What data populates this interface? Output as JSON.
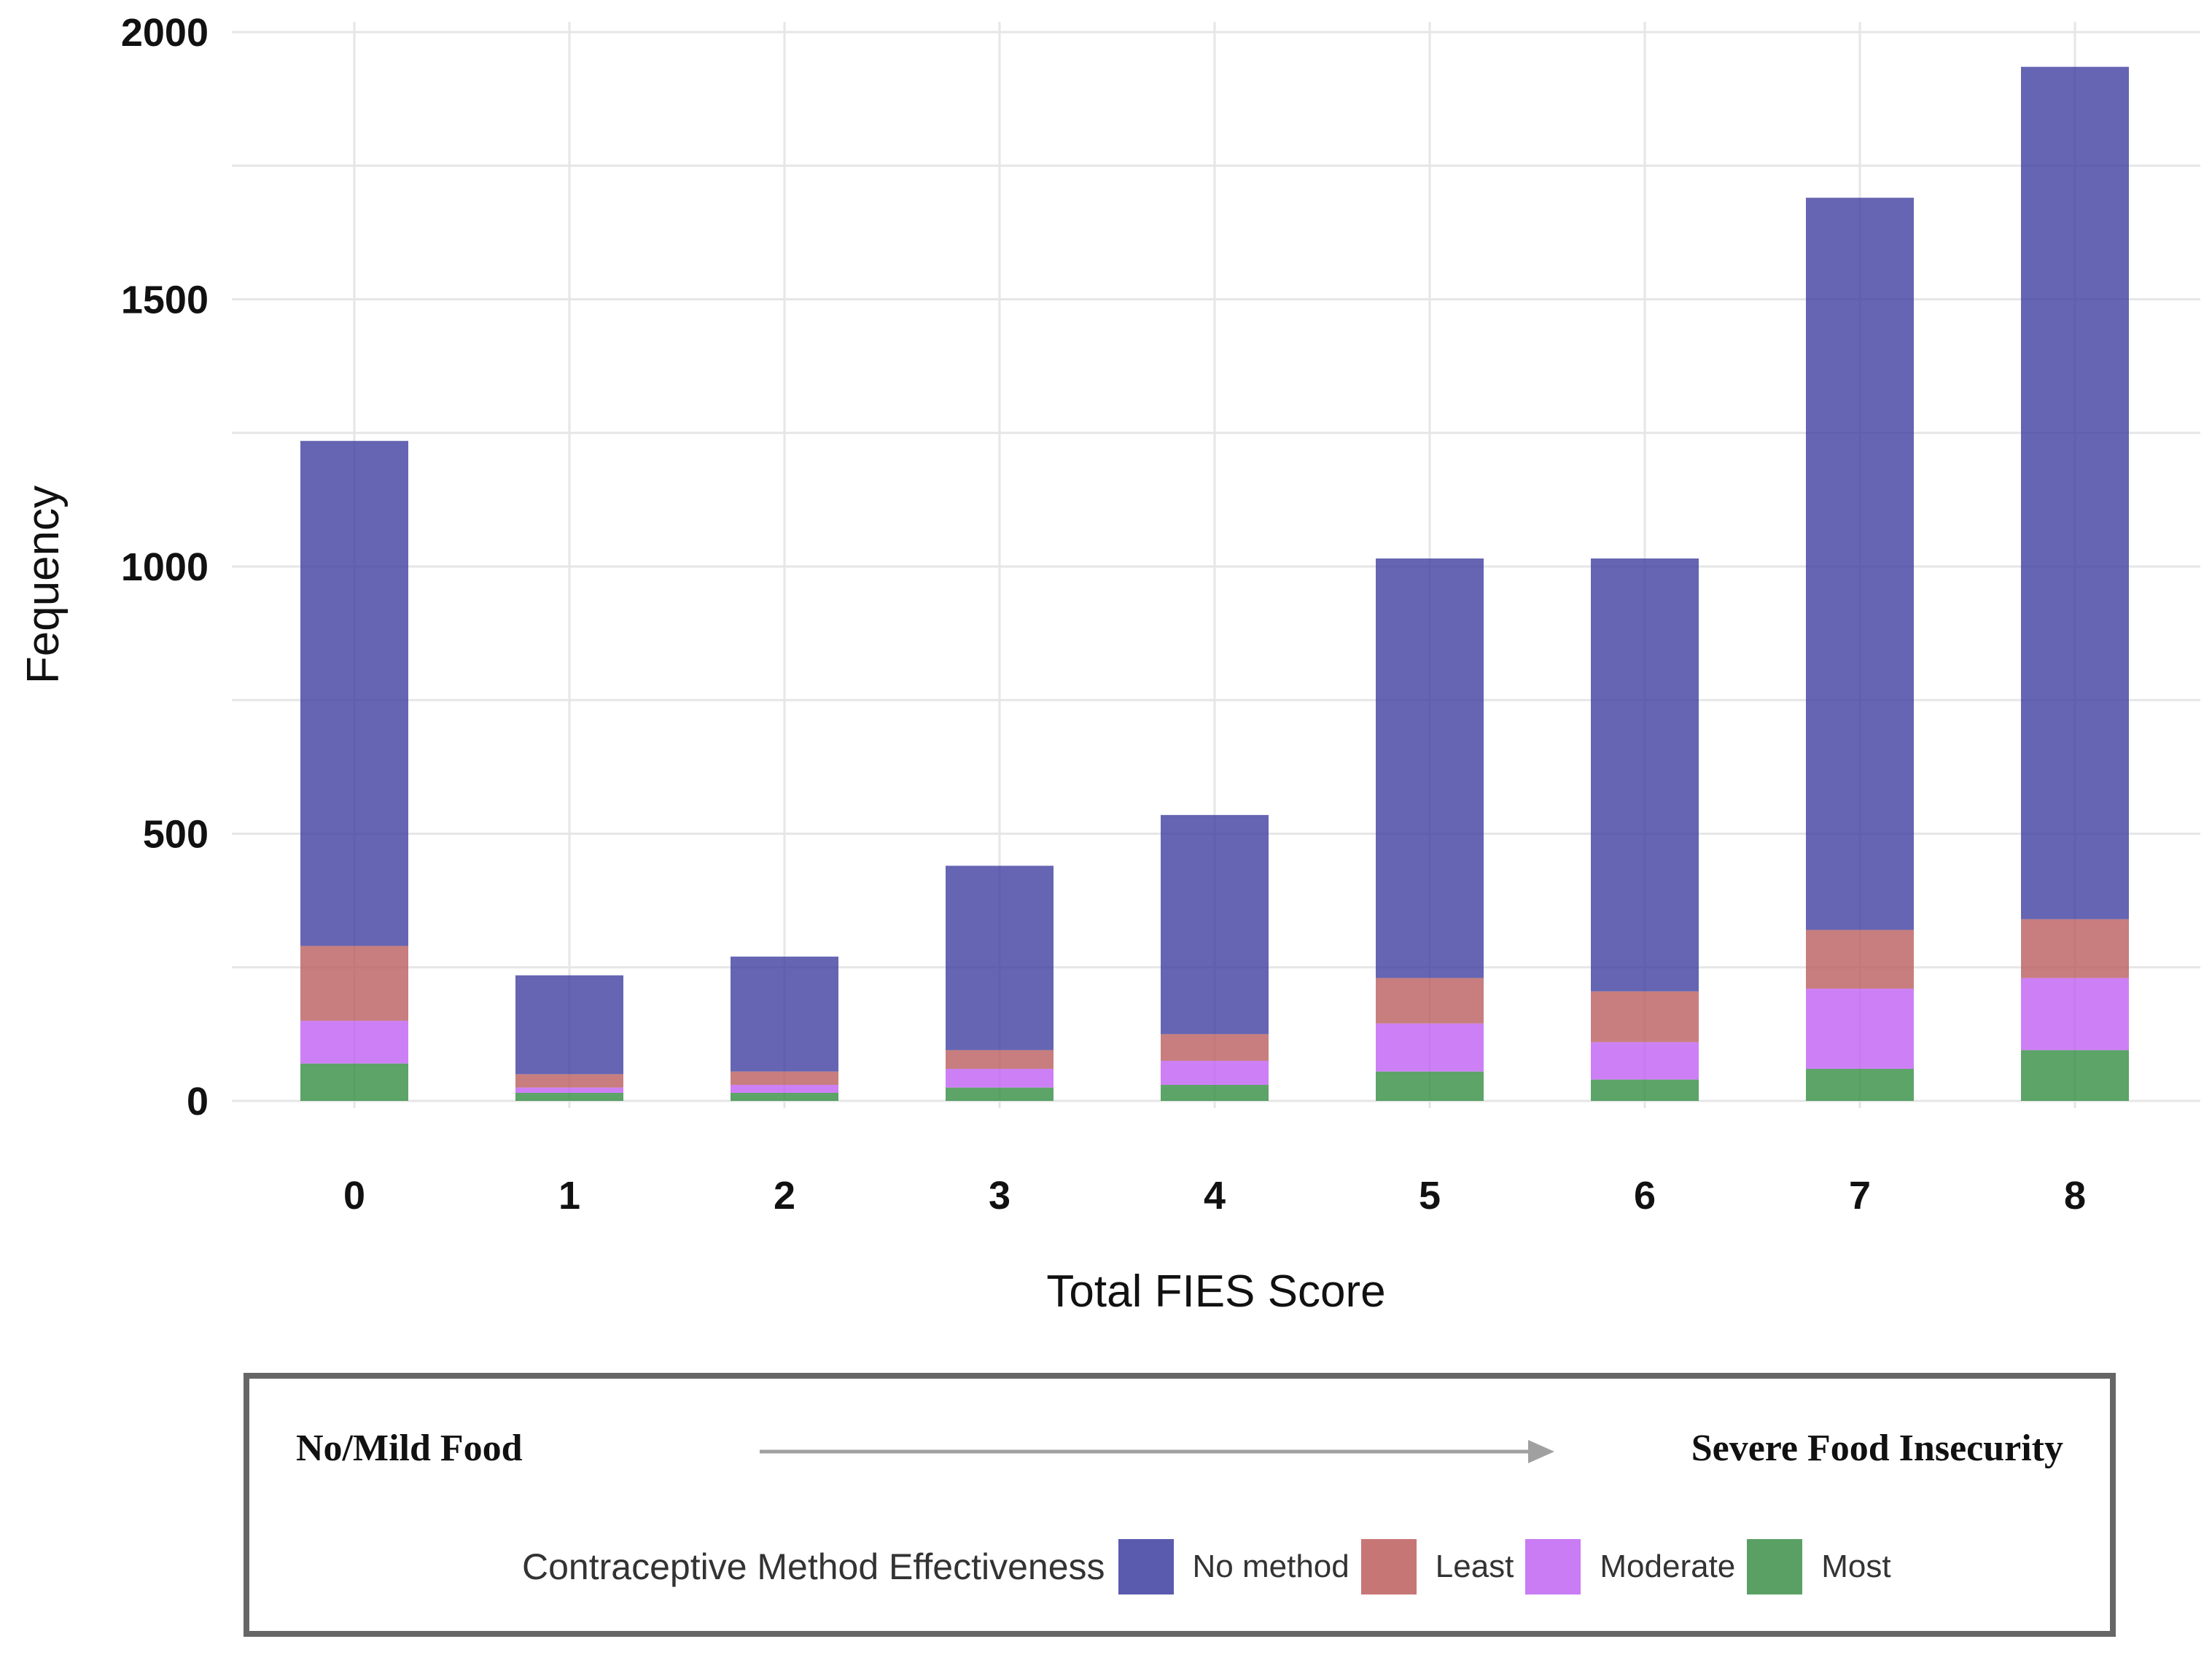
{
  "chart_data": {
    "type": "bar",
    "stacked": true,
    "categories": [
      "0",
      "1",
      "2",
      "3",
      "4",
      "5",
      "6",
      "7",
      "8"
    ],
    "series": [
      {
        "name": "Most",
        "color": "#2e8b3e",
        "values": [
          70,
          15,
          15,
          25,
          30,
          55,
          40,
          60,
          95
        ]
      },
      {
        "name": "Moderate",
        "color": "#bf5cf2",
        "values": [
          80,
          10,
          15,
          35,
          45,
          90,
          70,
          150,
          135
        ]
      },
      {
        "name": "Least",
        "color": "#b95a5a",
        "values": [
          140,
          25,
          25,
          35,
          50,
          85,
          95,
          110,
          110
        ]
      },
      {
        "name": "No method",
        "color": "#3a3a9e",
        "values": [
          945,
          185,
          215,
          345,
          410,
          785,
          810,
          1370,
          1595
        ]
      }
    ],
    "stack_order": [
      "Most",
      "Moderate",
      "Least",
      "No method"
    ],
    "totals": [
      1235,
      235,
      270,
      440,
      535,
      1015,
      1015,
      1690,
      1935
    ],
    "xlabel": "Total FIES Score",
    "ylabel": "Fequency",
    "ylim": [
      0,
      2000
    ],
    "yticks": [
      0,
      500,
      1000,
      1500,
      2000
    ],
    "yticks_text": [
      "0",
      "500",
      "1000",
      "1500",
      "2000"
    ],
    "grid": true,
    "bar_opacity": 0.78,
    "legend": {
      "title": "Contraceptive Method Effectiveness",
      "placement": "bottom",
      "entries": [
        "No method",
        "Least",
        "Moderate",
        "Most"
      ]
    }
  },
  "annotation": {
    "left_text": "No/Mild Food",
    "right_text": "Severe Food Insecurity",
    "arrow_color": "#a0a0a0"
  },
  "colors": {
    "grid": "#e6e6e6",
    "border": "#666666"
  }
}
